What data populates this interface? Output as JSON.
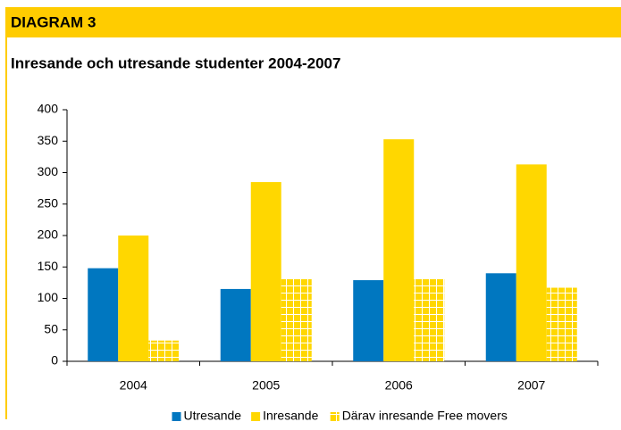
{
  "header": {
    "title": "DIAGRAM 3"
  },
  "chart_data": {
    "type": "bar",
    "title": "Inresande och utresande studenter 2004-2007",
    "categories": [
      "2004",
      "2005",
      "2006",
      "2007"
    ],
    "series": [
      {
        "name": "Utresande",
        "color": "#0077c0",
        "values": [
          148,
          115,
          129,
          140
        ]
      },
      {
        "name": "Inresande",
        "color": "#ffd700",
        "values": [
          200,
          285,
          353,
          313
        ]
      },
      {
        "name": "Därav inresande Free movers",
        "color": "#ffd700",
        "pattern": "grid",
        "values": [
          33,
          131,
          131,
          117
        ]
      }
    ],
    "ylim": [
      0,
      400
    ],
    "yticks": [
      0,
      50,
      100,
      150,
      200,
      250,
      300,
      350,
      400
    ],
    "grid": false,
    "legend": "bottom"
  }
}
